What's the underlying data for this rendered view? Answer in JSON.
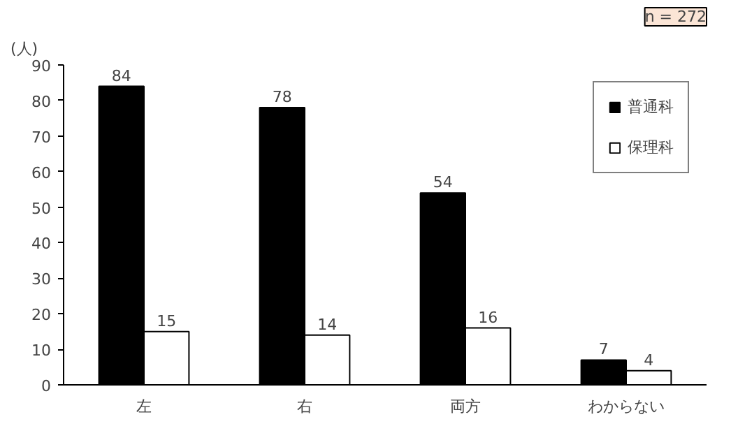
{
  "chart_data": {
    "type": "bar",
    "ylabel": "(人)",
    "categories": [
      "左",
      "右",
      "両方",
      "わからない"
    ],
    "series": [
      {
        "name": "普通科",
        "color": "#000000",
        "values": [
          84,
          78,
          54,
          7
        ]
      },
      {
        "name": "保理科",
        "color": "#ffffff",
        "values": [
          15,
          14,
          16,
          4
        ]
      }
    ],
    "ylim": [
      0,
      90
    ],
    "yticks": [
      0,
      10,
      20,
      30,
      40,
      50,
      60,
      70,
      80,
      90
    ],
    "grid": false,
    "legend": "top right",
    "data_labels": true,
    "annotations": [
      "n = 272"
    ]
  }
}
